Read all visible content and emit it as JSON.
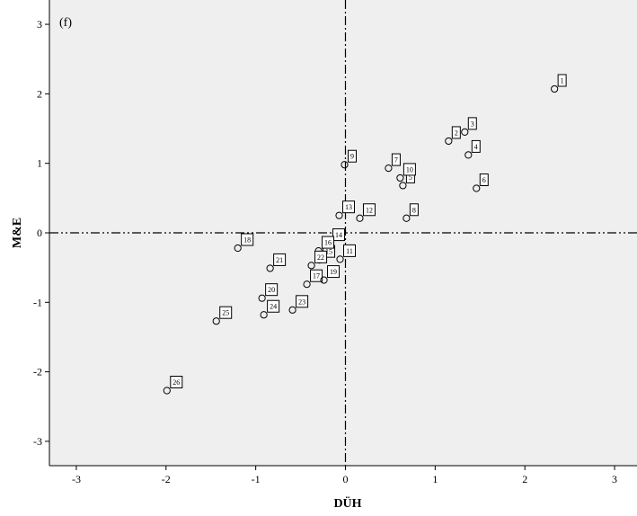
{
  "chart_data": {
    "type": "scatter",
    "panel_label": "(f)",
    "xlabel": "DÜH",
    "ylabel": "M&E",
    "xlim": [
      -3.3,
      3.25
    ],
    "ylim": [
      -3.35,
      3.35
    ],
    "xticks": [
      -3,
      -2,
      -1,
      0,
      1,
      2,
      3
    ],
    "yticks": [
      -3,
      -2,
      -1,
      0,
      1,
      2,
      3
    ],
    "reference_lines": {
      "x": 0,
      "y": 0
    },
    "points": [
      {
        "label": "1",
        "x": 2.33,
        "y": 2.07
      },
      {
        "label": "2",
        "x": 1.15,
        "y": 1.32
      },
      {
        "label": "3",
        "x": 1.33,
        "y": 1.45
      },
      {
        "label": "4",
        "x": 1.37,
        "y": 1.12
      },
      {
        "label": "5",
        "x": 0.64,
        "y": 0.68
      },
      {
        "label": "6",
        "x": 1.46,
        "y": 0.64
      },
      {
        "label": "7",
        "x": 0.48,
        "y": 0.93
      },
      {
        "label": "8",
        "x": 0.68,
        "y": 0.21
      },
      {
        "label": "9",
        "x": -0.01,
        "y": 0.98
      },
      {
        "label": "10",
        "x": 0.61,
        "y": 0.79
      },
      {
        "label": "11",
        "x": -0.06,
        "y": -0.38
      },
      {
        "label": "12",
        "x": 0.16,
        "y": 0.21
      },
      {
        "label": "13",
        "x": -0.07,
        "y": 0.25
      },
      {
        "label": "14",
        "x": -0.18,
        "y": -0.15
      },
      {
        "label": "15",
        "x": -0.29,
        "y": -0.39
      },
      {
        "label": "16",
        "x": -0.3,
        "y": -0.26
      },
      {
        "label": "17",
        "x": -0.43,
        "y": -0.74
      },
      {
        "label": "18",
        "x": -1.2,
        "y": -0.22
      },
      {
        "label": "19",
        "x": -0.24,
        "y": -0.68
      },
      {
        "label": "20",
        "x": -0.93,
        "y": -0.94
      },
      {
        "label": "21",
        "x": -0.84,
        "y": -0.51
      },
      {
        "label": "22",
        "x": -0.38,
        "y": -0.47
      },
      {
        "label": "23",
        "x": -0.59,
        "y": -1.11
      },
      {
        "label": "24",
        "x": -0.91,
        "y": -1.18
      },
      {
        "label": "25",
        "x": -1.44,
        "y": -1.27
      },
      {
        "label": "26",
        "x": -1.99,
        "y": -2.27
      }
    ],
    "colors": {
      "background": "#efefef",
      "axis": "#000000",
      "marker": "#000000"
    },
    "grid": false,
    "legend": "none"
  }
}
